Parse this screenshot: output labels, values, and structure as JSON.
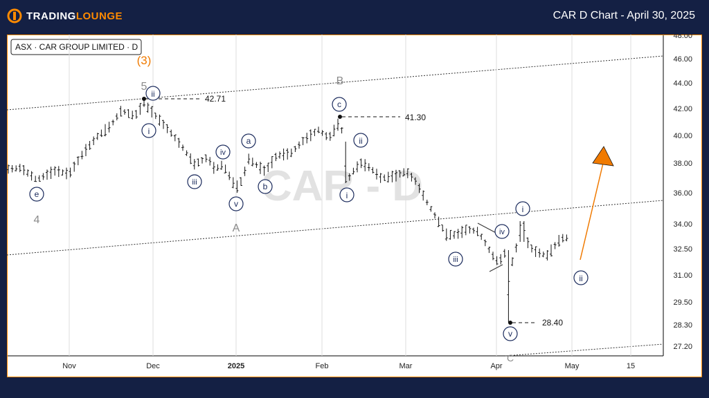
{
  "header": {
    "logo_text_main": "TRADINGLOUNGE",
    "chart_title": "CAR D Chart - April 30, 2025",
    "brand_color": "#ff8a00"
  },
  "chart_data": {
    "type": "candlestick",
    "symbol_label": "ASX · CAR GROUP LIMITED · D",
    "watermark": "CAR - D",
    "y_ticks": [
      "48.00",
      "46.00",
      "44.00",
      "42.00",
      "40.00",
      "38.00",
      "36.00",
      "34.00",
      "32.50",
      "31.00",
      "29.50",
      "28.30",
      "27.20"
    ],
    "x_ticks": [
      "Nov",
      "Dec",
      "2025",
      "Feb",
      "Mar",
      "Apr",
      "May",
      "15"
    ],
    "price_levels": [
      {
        "label": "42.71",
        "value": 42.71
      },
      {
        "label": "41.30",
        "value": 41.3
      },
      {
        "label": "28.40",
        "value": 28.4
      }
    ],
    "wave_labels": [
      "(3)",
      "5",
      "4",
      "A",
      "B",
      "ii",
      "i",
      "iii",
      "iv",
      "v",
      "a",
      "b",
      "c",
      "ii",
      "i",
      "iii",
      "iv",
      "v",
      "i",
      "ii",
      "e",
      "C"
    ],
    "colors": {
      "background": "#ffffff",
      "wave_circle": "#1a2a5c",
      "wave_grey": "#8a8a8a",
      "wave_orange": "#f07a00",
      "arrow": "#f07a00"
    }
  }
}
